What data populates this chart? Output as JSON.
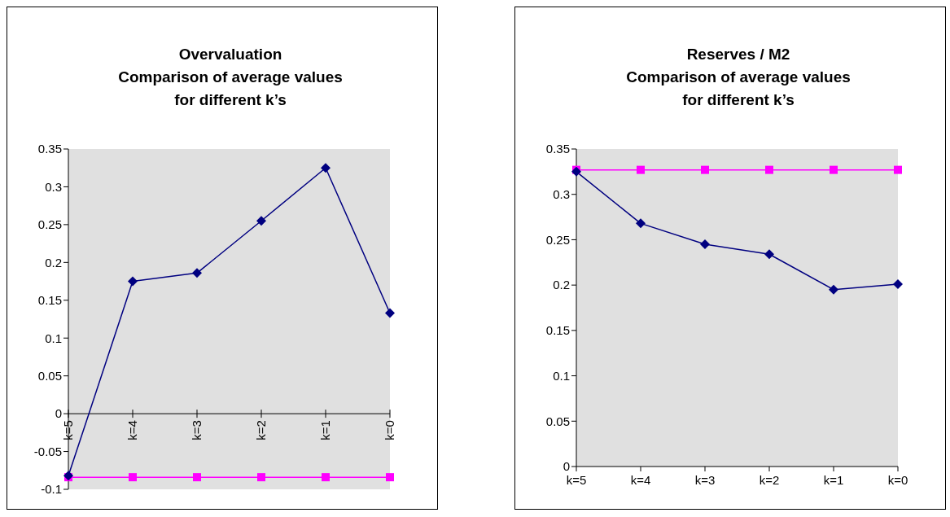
{
  "chart_data": [
    {
      "type": "line",
      "title": "Overvaluation\nComparison of average values\nfor different k’s",
      "categories": [
        "k=5",
        "k=4",
        "k=3",
        "k=2",
        "k=1",
        "k=0"
      ],
      "series": [
        {
          "color": "#000080",
          "marker": "diamond",
          "values": [
            -0.082,
            0.175,
            0.186,
            0.255,
            0.325,
            0.133
          ]
        },
        {
          "color": "#ff00ff",
          "marker": "square",
          "values": [
            -0.084,
            -0.084,
            -0.084,
            -0.084,
            -0.084,
            -0.084
          ]
        }
      ],
      "ylim": [
        -0.1,
        0.35
      ],
      "yticks": [
        -0.1,
        -0.05,
        0,
        0.05,
        0.1,
        0.15,
        0.2,
        0.25,
        0.3,
        0.35
      ],
      "grid": false,
      "legend": false
    },
    {
      "type": "line",
      "title": "Reserves / M2\nComparison of average values\nfor different k’s",
      "categories": [
        "k=5",
        "k=4",
        "k=3",
        "k=2",
        "k=1",
        "k=0"
      ],
      "series": [
        {
          "color": "#000080",
          "marker": "diamond",
          "values": [
            0.325,
            0.268,
            0.245,
            0.234,
            0.195,
            0.201
          ]
        },
        {
          "color": "#ff00ff",
          "marker": "square",
          "values": [
            0.327,
            0.327,
            0.327,
            0.327,
            0.327,
            0.327
          ]
        }
      ],
      "ylim": [
        0,
        0.35
      ],
      "yticks": [
        0,
        0.05,
        0.1,
        0.15,
        0.2,
        0.25,
        0.3,
        0.35
      ],
      "grid": false,
      "legend": false
    }
  ]
}
